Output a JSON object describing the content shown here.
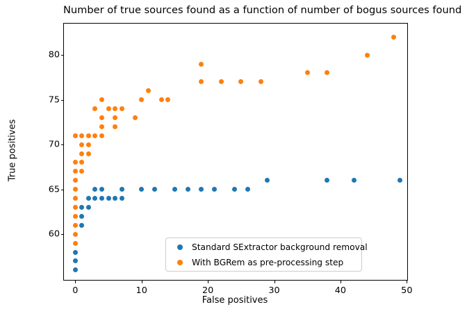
{
  "title": "Number of true sources found as a function of number of bogus sources found",
  "chart_data": {
    "type": "scatter",
    "title": "Number of true sources found as a function of number of bogus sources found",
    "xlabel": "False positives",
    "ylabel": "True positives",
    "xlim": [
      -1.71,
      50.07
    ],
    "ylim": [
      54.9,
      83.5
    ],
    "xticks": [
      0,
      10,
      20,
      30,
      40,
      50
    ],
    "yticks": [
      60,
      65,
      70,
      75,
      80
    ],
    "grid": false,
    "legend_position": "lower right inside axes",
    "marker": "circle",
    "series": [
      {
        "name": "Standard SExtractor background removal",
        "color": "#1f77b4",
        "points": [
          [
            0,
            56
          ],
          [
            0,
            57
          ],
          [
            0,
            58
          ],
          [
            1,
            61
          ],
          [
            1,
            62
          ],
          [
            1,
            63
          ],
          [
            2,
            63
          ],
          [
            2,
            64
          ],
          [
            3,
            64
          ],
          [
            4,
            64
          ],
          [
            5,
            64
          ],
          [
            6,
            64
          ],
          [
            7,
            64
          ],
          [
            3,
            65
          ],
          [
            4,
            65
          ],
          [
            7,
            65
          ],
          [
            10,
            65
          ],
          [
            12,
            65
          ],
          [
            15,
            65
          ],
          [
            17,
            65
          ],
          [
            19,
            65
          ],
          [
            21,
            65
          ],
          [
            24,
            65
          ],
          [
            26,
            65
          ],
          [
            29,
            66
          ],
          [
            38,
            66
          ],
          [
            42,
            66
          ],
          [
            49,
            66
          ]
        ]
      },
      {
        "name": "With BGRem as pre-processing step",
        "color": "#ff7f0e",
        "points": [
          [
            0,
            59
          ],
          [
            0,
            60
          ],
          [
            0,
            61
          ],
          [
            0,
            62
          ],
          [
            0,
            63
          ],
          [
            0,
            64
          ],
          [
            0,
            65
          ],
          [
            0,
            66
          ],
          [
            0,
            67
          ],
          [
            0,
            68
          ],
          [
            0,
            71
          ],
          [
            1,
            67
          ],
          [
            1,
            68
          ],
          [
            1,
            69
          ],
          [
            1,
            70
          ],
          [
            1,
            71
          ],
          [
            2,
            69
          ],
          [
            2,
            70
          ],
          [
            2,
            71
          ],
          [
            3,
            71
          ],
          [
            3,
            74
          ],
          [
            4,
            71
          ],
          [
            4,
            72
          ],
          [
            4,
            73
          ],
          [
            4,
            75
          ],
          [
            5,
            74
          ],
          [
            6,
            72
          ],
          [
            6,
            73
          ],
          [
            6,
            74
          ],
          [
            7,
            74
          ],
          [
            9,
            73
          ],
          [
            10,
            75
          ],
          [
            11,
            76
          ],
          [
            13,
            75
          ],
          [
            14,
            75
          ],
          [
            19,
            77
          ],
          [
            19,
            79
          ],
          [
            22,
            77
          ],
          [
            25,
            77
          ],
          [
            28,
            77
          ],
          [
            35,
            78
          ],
          [
            38,
            78
          ],
          [
            44,
            80
          ],
          [
            48,
            82
          ]
        ]
      }
    ]
  }
}
